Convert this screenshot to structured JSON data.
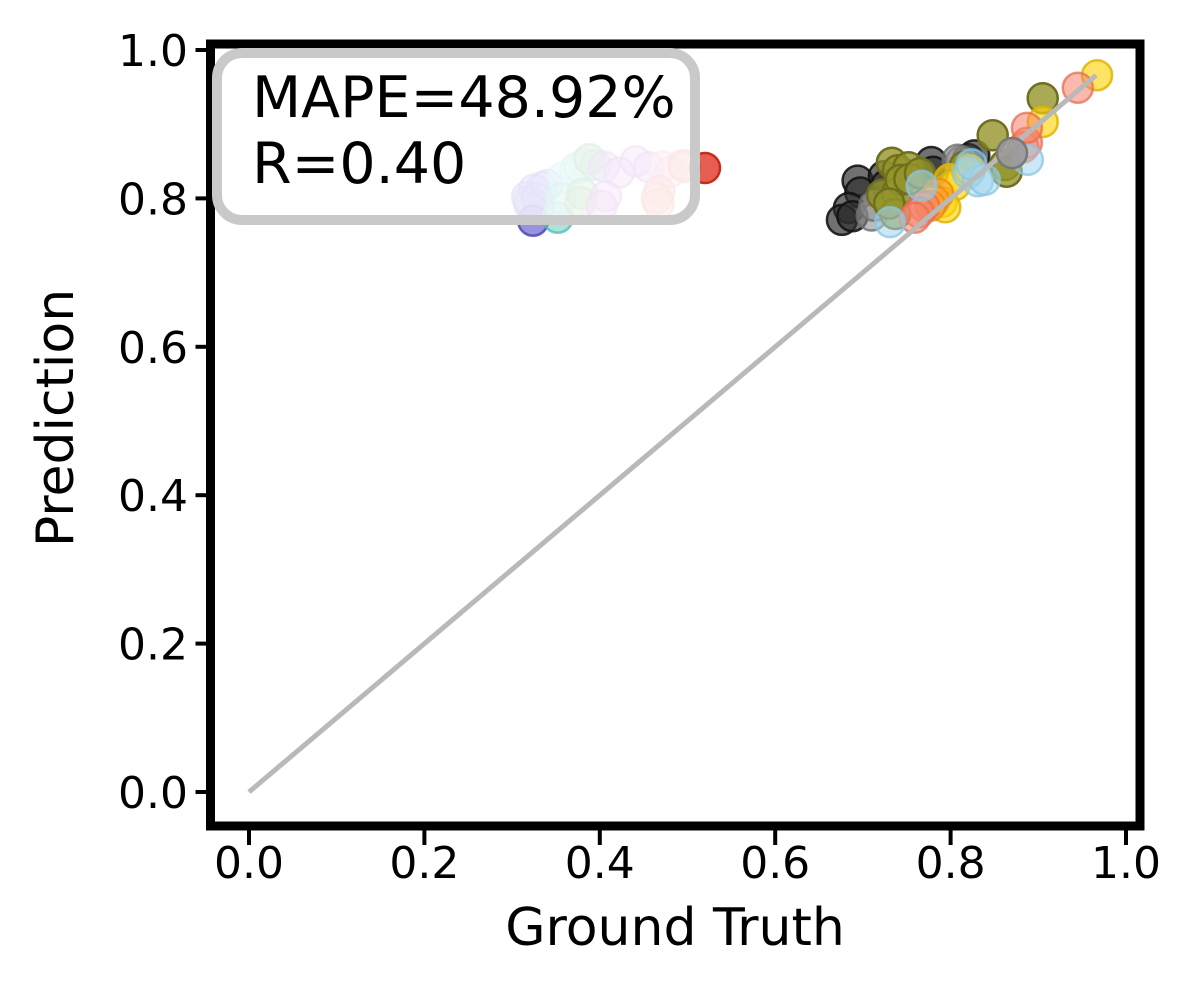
{
  "chart_data": {
    "type": "scatter",
    "title": "",
    "xlabel": "Ground Truth",
    "ylabel": "Prediction",
    "xlim": [
      -0.045,
      1.018
    ],
    "ylim": [
      -0.046,
      1.008
    ],
    "grid": false,
    "legend": "none",
    "xtick_labels": [
      "0.0",
      "0.2",
      "0.4",
      "0.6",
      "0.8",
      "1.0"
    ],
    "ytick_labels": [
      "0.0",
      "0.2",
      "0.4",
      "0.6",
      "0.8",
      "1.0"
    ],
    "tick_values": [
      0.0,
      0.2,
      0.4,
      0.6,
      0.8,
      1.0
    ],
    "annotation": {
      "line1": "MAPE=48.92%",
      "line2": "R=0.40"
    },
    "annotation_style": {
      "border_color": "#c9c9c9",
      "fill": "rgba(255,255,255,0.82)"
    },
    "identity_line": {
      "x1": 0.0,
      "y1": 0.0,
      "x2": 0.966,
      "y2": 0.966,
      "color": "#b9b9b9",
      "width": 5
    },
    "marker": {
      "radius": 15,
      "edge_width": 2.5
    },
    "axis_color": "#000000",
    "series": [
      {
        "name": "purple",
        "color": "#8278e8",
        "edge": "#6a60d8",
        "alpha": 0.45,
        "above_line": false,
        "points": [
          [
            0.317,
            0.802
          ],
          [
            0.325,
            0.812
          ],
          [
            0.334,
            0.815
          ],
          [
            0.32,
            0.791
          ],
          [
            0.331,
            0.789
          ],
          [
            0.319,
            0.797
          ],
          [
            0.328,
            0.8
          ],
          [
            0.34,
            0.818
          ]
        ]
      },
      {
        "name": "indigo",
        "color": "#5a50cc",
        "edge": "#4a40bc",
        "alpha": 0.62,
        "above_line": false,
        "points": [
          [
            0.324,
            0.77
          ]
        ]
      },
      {
        "name": "cyan",
        "color": "#93e2de",
        "edge": "#7ad0cc",
        "alpha": 0.55,
        "above_line": false,
        "points": [
          [
            0.358,
            0.828
          ],
          [
            0.372,
            0.84
          ],
          [
            0.383,
            0.847
          ],
          [
            0.377,
            0.842
          ]
        ]
      },
      {
        "name": "teal",
        "color": "#62cfc3",
        "edge": "#4abdb1",
        "alpha": 0.55,
        "above_line": false,
        "points": [
          [
            0.356,
            0.8
          ],
          [
            0.352,
            0.774
          ],
          [
            0.395,
            0.845
          ]
        ]
      },
      {
        "name": "green",
        "color": "#7cbb72",
        "edge": "#66a85e",
        "alpha": 0.55,
        "above_line": false,
        "points": [
          [
            0.388,
            0.853
          ],
          [
            0.38,
            0.806
          ],
          [
            0.378,
            0.795
          ]
        ]
      },
      {
        "name": "orchid",
        "color": "#c678dd",
        "edge": "#b463cc",
        "alpha": 0.45,
        "above_line": false,
        "points": [
          [
            0.405,
            0.843
          ],
          [
            0.422,
            0.835
          ],
          [
            0.441,
            0.85
          ],
          [
            0.407,
            0.803
          ],
          [
            0.402,
            0.79
          ],
          [
            0.456,
            0.842
          ]
        ]
      },
      {
        "name": "pink",
        "color": "#f0a6d0",
        "edge": "#e491bd",
        "alpha": 0.5,
        "above_line": false,
        "points": [
          [
            0.472,
            0.843
          ],
          [
            0.481,
            0.836
          ]
        ]
      },
      {
        "name": "salmon-left",
        "color": "#f2948a",
        "edge": "#e57f73",
        "alpha": 0.5,
        "above_line": false,
        "points": [
          [
            0.468,
            0.81
          ],
          [
            0.465,
            0.8
          ],
          [
            0.467,
            0.793
          ],
          [
            0.495,
            0.845
          ],
          [
            0.497,
            0.842
          ]
        ]
      },
      {
        "name": "red",
        "color": "#e23425",
        "edge": "#c82a1d",
        "alpha": 0.8,
        "above_line": false,
        "points": [
          [
            0.52,
            0.841
          ]
        ]
      },
      {
        "name": "black",
        "color": "#2e2e2e",
        "edge": "#111111",
        "alpha": 0.68,
        "above_line": false,
        "points": [
          [
            0.694,
            0.824
          ],
          [
            0.697,
            0.808
          ],
          [
            0.684,
            0.787
          ],
          [
            0.676,
            0.771
          ],
          [
            0.688,
            0.776
          ],
          [
            0.724,
            0.83
          ],
          [
            0.727,
            0.818
          ],
          [
            0.778,
            0.849
          ],
          [
            0.78,
            0.836
          ],
          [
            0.82,
            0.853
          ],
          [
            0.827,
            0.858
          ]
        ]
      },
      {
        "name": "gray",
        "color": "#909090",
        "edge": "#6e6e6e",
        "alpha": 0.6,
        "above_line": false,
        "points": [
          [
            0.71,
            0.777
          ],
          [
            0.713,
            0.79
          ],
          [
            0.745,
            0.815
          ],
          [
            0.812,
            0.85
          ],
          [
            0.808,
            0.852
          ]
        ]
      },
      {
        "name": "olive",
        "color": "#95952c",
        "edge": "#6f6f1c",
        "alpha": 0.8,
        "above_line": false,
        "points": [
          [
            0.733,
            0.848
          ],
          [
            0.74,
            0.838
          ],
          [
            0.722,
            0.805
          ],
          [
            0.739,
            0.807
          ],
          [
            0.737,
            0.779
          ],
          [
            0.752,
            0.842
          ],
          [
            0.743,
            0.825
          ],
          [
            0.73,
            0.793
          ],
          [
            0.753,
            0.826
          ],
          [
            0.765,
            0.834
          ],
          [
            0.816,
            0.843
          ],
          [
            0.848,
            0.885
          ],
          [
            0.862,
            0.845
          ],
          [
            0.864,
            0.836
          ],
          [
            0.905,
            0.935
          ]
        ]
      },
      {
        "name": "yellow",
        "color": "#ffd60f",
        "edge": "#e0b400",
        "alpha": 0.65,
        "above_line": false,
        "points": [
          [
            0.799,
            0.826
          ],
          [
            0.805,
            0.818
          ],
          [
            0.79,
            0.795
          ],
          [
            0.794,
            0.788
          ],
          [
            0.822,
            0.838
          ],
          [
            0.905,
            0.903
          ],
          [
            0.967,
            0.966
          ]
        ]
      },
      {
        "name": "orange",
        "color": "#ff9e30",
        "edge": "#ef8a14",
        "alpha": 0.6,
        "above_line": false,
        "points": [
          [
            0.786,
            0.806
          ],
          [
            0.781,
            0.797
          ],
          [
            0.777,
            0.79
          ]
        ]
      },
      {
        "name": "salmon",
        "color": "#f4826a",
        "edge": "#e56e54",
        "alpha": 0.55,
        "above_line": false,
        "points": [
          [
            0.77,
            0.789
          ],
          [
            0.764,
            0.781
          ],
          [
            0.759,
            0.774
          ],
          [
            0.883,
            0.869
          ],
          [
            0.887,
            0.875
          ],
          [
            0.887,
            0.895
          ],
          [
            0.945,
            0.949
          ]
        ]
      },
      {
        "name": "light-blue",
        "color": "#a3d6ef",
        "edge": "#8ac4e4",
        "alpha": 0.55,
        "above_line": false,
        "points": [
          [
            0.767,
            0.817
          ],
          [
            0.82,
            0.834
          ],
          [
            0.831,
            0.823
          ],
          [
            0.839,
            0.825
          ],
          [
            0.888,
            0.852
          ],
          [
            0.824,
            0.846
          ],
          [
            0.731,
            0.768
          ]
        ]
      },
      {
        "name": "gray-on-line",
        "color": "#9a9a9a",
        "edge": "#787878",
        "alpha": 0.9,
        "above_line": true,
        "points": [
          [
            0.87,
            0.861
          ]
        ]
      }
    ]
  }
}
